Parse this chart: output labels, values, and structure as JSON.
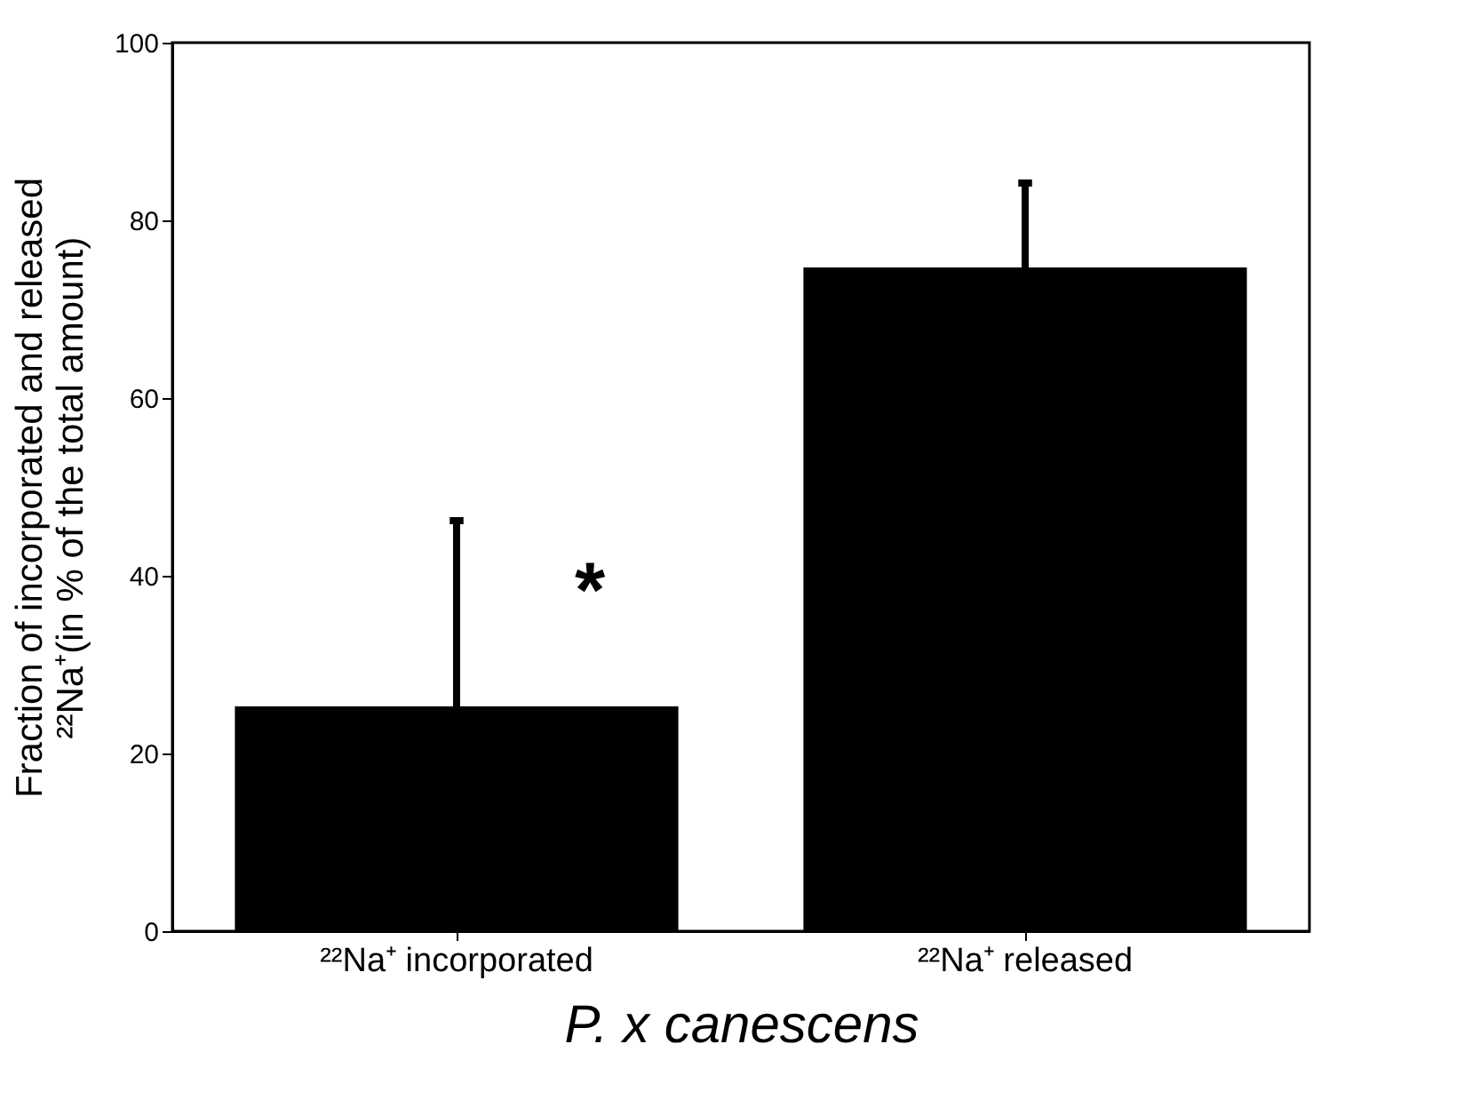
{
  "chart_data": {
    "type": "bar",
    "categories": [
      "²²Na⁺ incorporated",
      "²²Na⁺ released"
    ],
    "values": [
      25.3,
      74.7
    ],
    "errors": [
      [
        25.3,
        46.2
      ],
      [
        74.7,
        84.2
      ]
    ],
    "color": "#000000",
    "ylim": [
      0,
      100
    ],
    "yticks": [
      0,
      20,
      40,
      60,
      80,
      100
    ],
    "xlabel": "P. x canescens",
    "ylabel": "Fraction of incorporated and released\n²²Na⁺(in % of the total amount)",
    "annotations": [
      {
        "text": "*",
        "x": "²²Na⁺ incorporated",
        "y": 40
      }
    ],
    "grid": false
  }
}
